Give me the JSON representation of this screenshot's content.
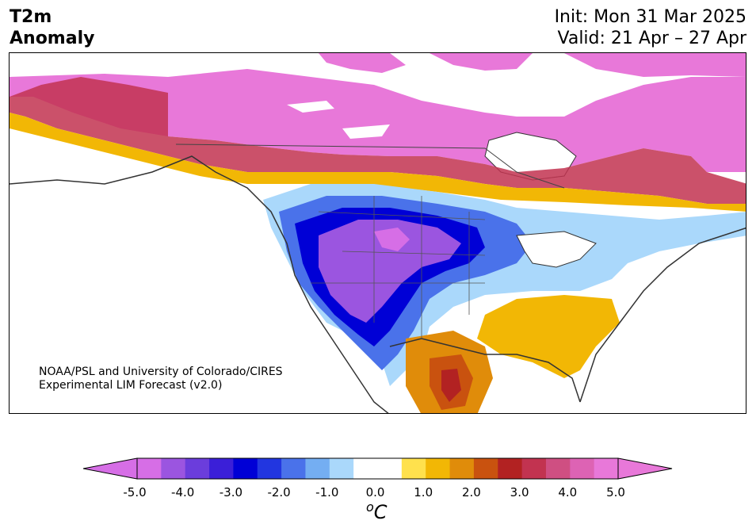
{
  "header": {
    "variable": "T2m",
    "variable_sub": "Anomaly",
    "init": "Init: Mon 31 Mar 2025",
    "valid": "Valid: 21 Apr – 27 Apr"
  },
  "credit": {
    "line1": "NOAA/PSL and University of Colorado/CIRES",
    "line2": "Experimental LIM Forecast (v2.0)"
  },
  "colorbar": {
    "ticks": [
      "-5.0",
      "-4.0",
      "-3.0",
      "-2.0",
      "-1.0",
      "0.0",
      "1.0",
      "2.0",
      "3.0",
      "4.0",
      "5.0"
    ],
    "unit_sup": "o",
    "unit": "C",
    "colors": [
      "#d66ee6",
      "#9b55e0",
      "#6b3ddc",
      "#3b1fd8",
      "#0000d6",
      "#2236e0",
      "#4a72ea",
      "#74aef2",
      "#aad8fb",
      "#ffffff",
      "#ffffff",
      "#ffe14d",
      "#f2b705",
      "#e08c0a",
      "#c9520f",
      "#b22222",
      "#c23350",
      "#cf4f82",
      "#dd63b4",
      "#e878d9"
    ],
    "extend_low": "#d66ee6",
    "extend_high": "#e878d9"
  }
}
